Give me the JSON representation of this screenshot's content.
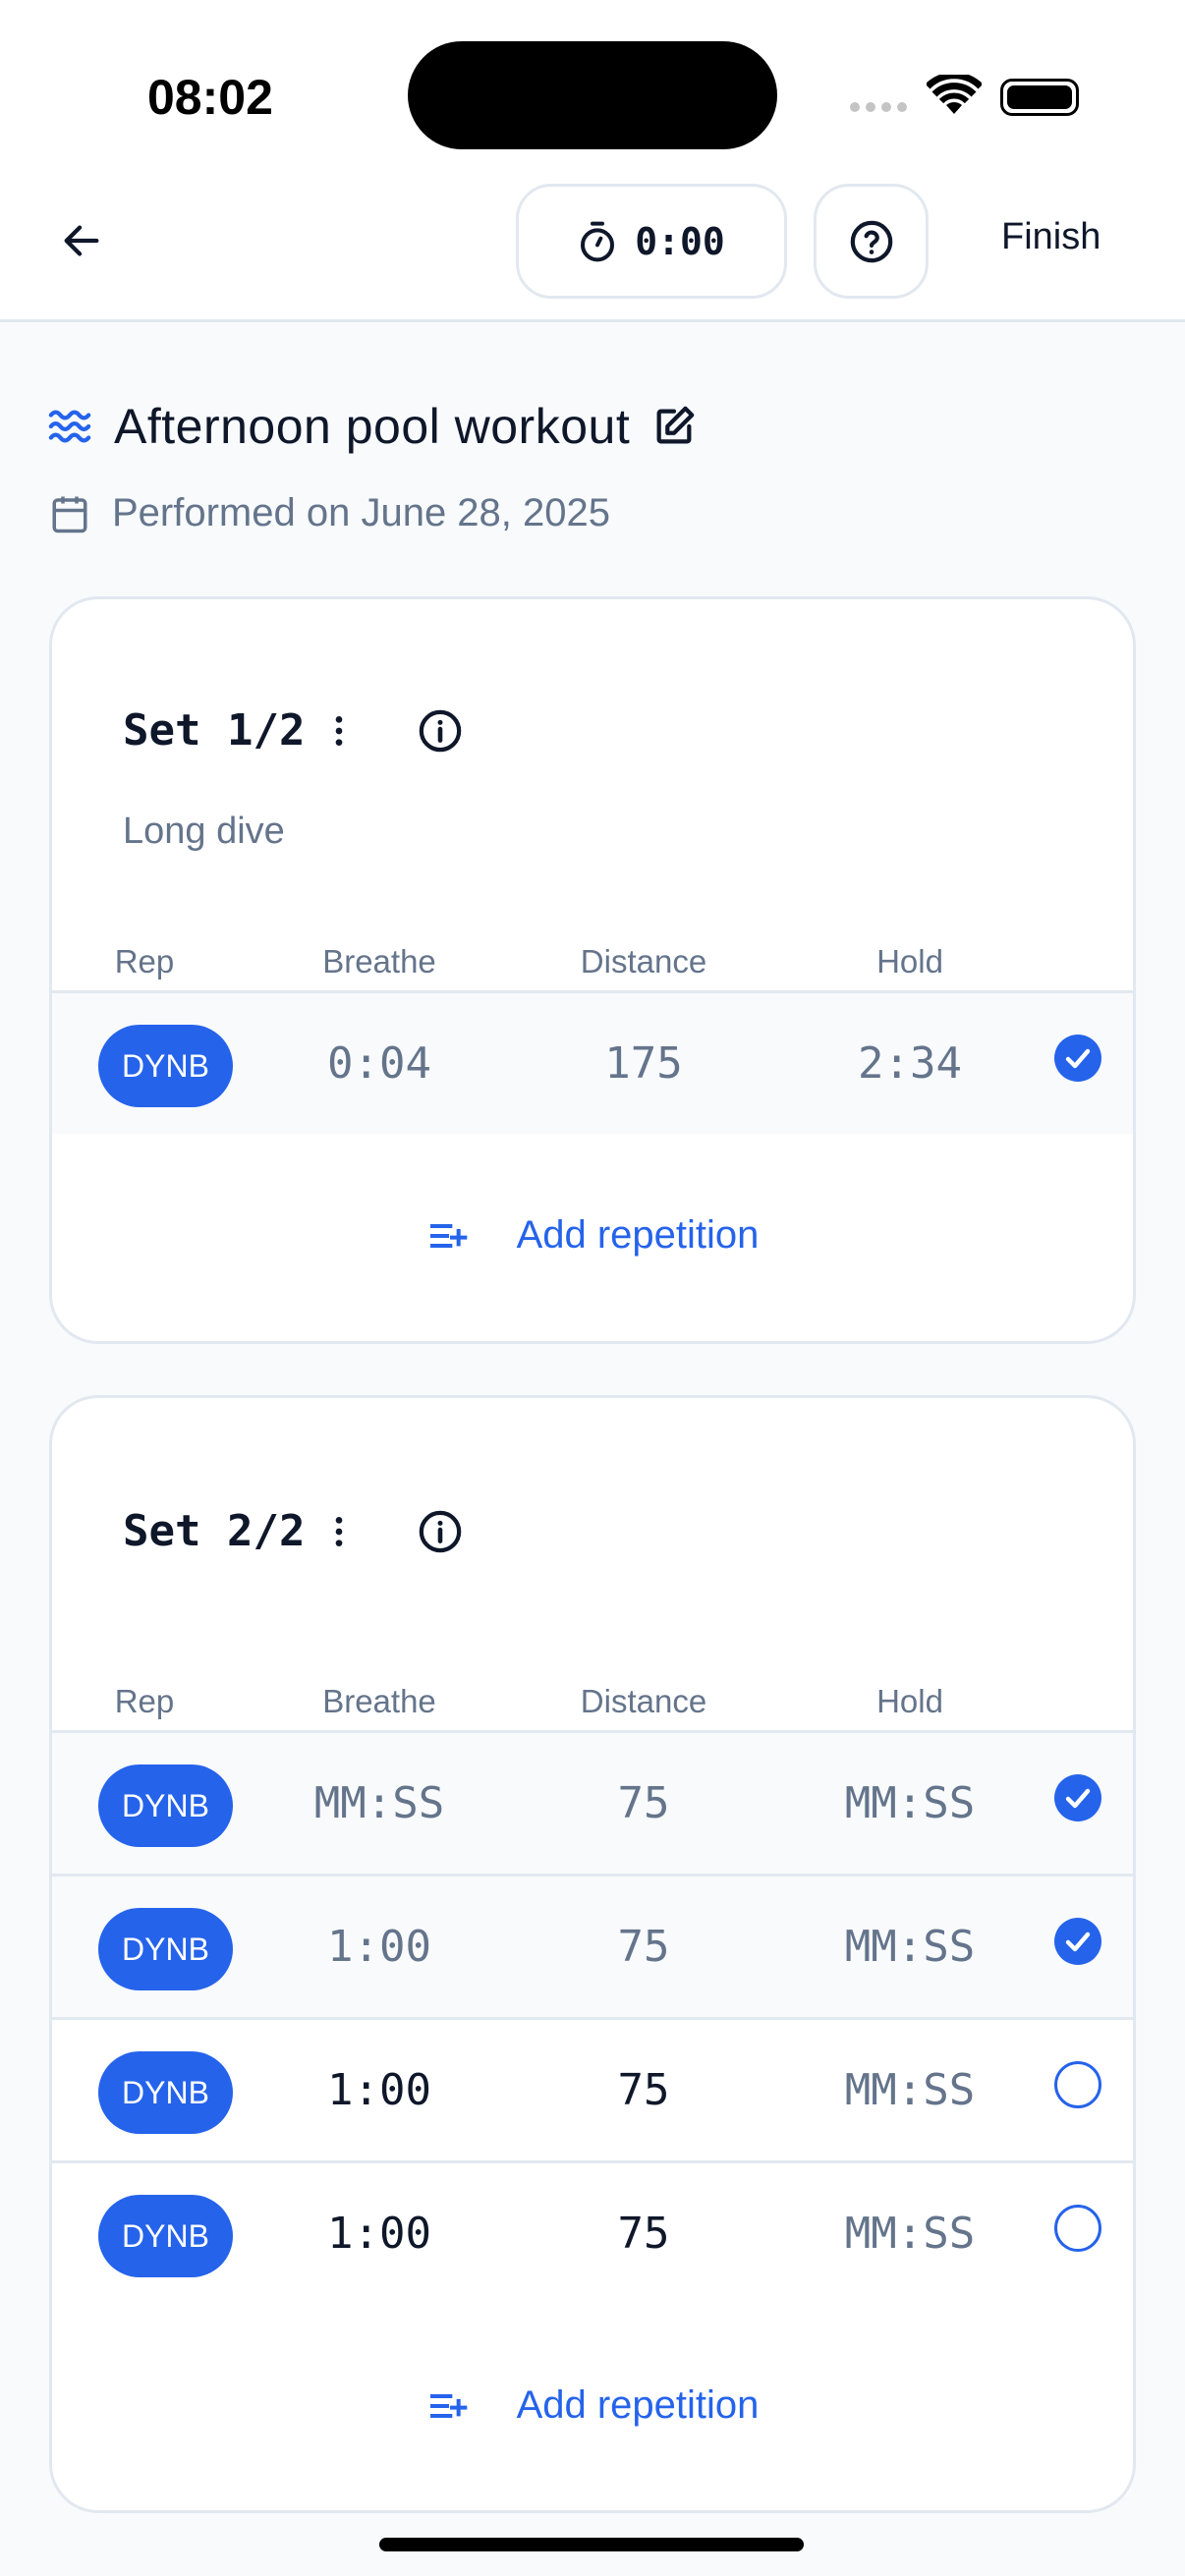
{
  "status_bar": {
    "time": "08:02"
  },
  "header": {
    "timer": "0:00",
    "finish_label": "Finish"
  },
  "workout": {
    "title": "Afternoon pool workout",
    "date": "Performed on June 28, 2025"
  },
  "columns": [
    "Rep",
    "Breathe",
    "Distance",
    "Hold"
  ],
  "add_label": "Add repetition",
  "accent": "#2563eb",
  "sets": [
    {
      "label": "Set 1/2",
      "subtitle": "Long dive",
      "reps": [
        {
          "type": "DYNB",
          "breathe": "0:04",
          "distance": "175",
          "hold": "2:34",
          "done": true
        }
      ]
    },
    {
      "label": "Set 2/2",
      "reps": [
        {
          "type": "DYNB",
          "breathe": "MM:SS",
          "distance": "75",
          "hold": "MM:SS",
          "done": true
        },
        {
          "type": "DYNB",
          "breathe": "1:00",
          "distance": "75",
          "hold": "MM:SS",
          "done": true
        },
        {
          "type": "DYNB",
          "breathe": "1:00",
          "distance": "75",
          "hold": "MM:SS",
          "done": false
        },
        {
          "type": "DYNB",
          "breathe": "1:00",
          "distance": "75",
          "hold": "MM:SS",
          "done": false
        }
      ]
    }
  ]
}
